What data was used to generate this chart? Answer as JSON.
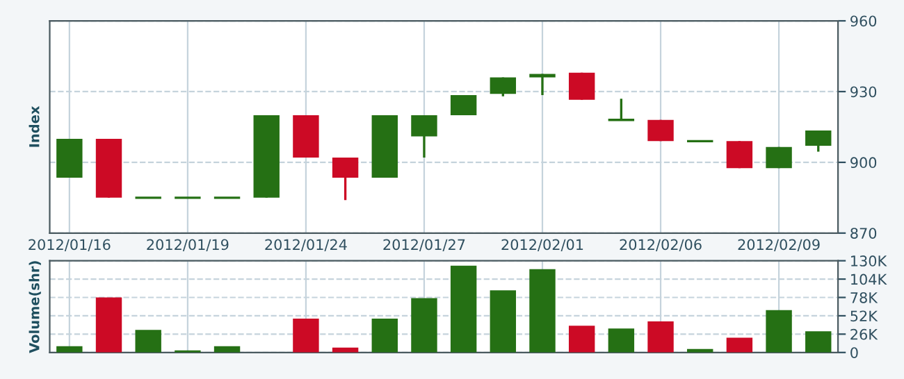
{
  "chart_data": [
    {
      "type": "candlestick",
      "ylabel": "Index",
      "categories": [
        "2012/01/16",
        null,
        null,
        "2012/01/19",
        null,
        null,
        "2012/01/24",
        null,
        null,
        "2012/01/27",
        null,
        null,
        "2012/02/01",
        null,
        null,
        "2012/02/06",
        null,
        null,
        "2012/02/09",
        null
      ],
      "ohlc": [
        [
          893.5,
          910,
          893.5,
          910
        ],
        [
          910,
          910,
          885,
          885
        ],
        [
          885,
          885,
          885,
          885
        ],
        [
          885,
          885,
          885,
          885
        ],
        [
          885,
          885,
          885,
          885
        ],
        [
          885,
          920,
          885,
          920
        ],
        [
          920,
          920,
          902,
          902
        ],
        [
          902,
          902,
          884,
          893.5
        ],
        [
          893.5,
          920,
          893.5,
          920
        ],
        [
          911,
          920,
          902,
          920
        ],
        [
          920,
          928.5,
          920,
          928.5
        ],
        [
          929,
          936,
          928,
          936
        ],
        [
          936,
          937.5,
          928.5,
          937.5
        ],
        [
          938,
          938,
          926.5,
          926.5
        ],
        [
          918,
          927,
          918,
          918
        ],
        [
          918,
          918,
          909,
          909
        ],
        [
          909,
          909,
          909,
          909
        ],
        [
          909,
          909,
          897.5,
          897.5
        ],
        [
          897.5,
          906.5,
          897.5,
          906.5
        ],
        [
          907,
          913.5,
          904.5,
          913.5
        ]
      ],
      "colors": [
        "#257014",
        "#cc0a25",
        "#257014",
        "#257014",
        "#257014",
        "#257014",
        "#cc0a25",
        "#cc0a25",
        "#257014",
        "#257014",
        "#257014",
        "#257014",
        "#257014",
        "#cc0a25",
        "#257014",
        "#cc0a25",
        "#257014",
        "#cc0a25",
        "#257014",
        "#257014"
      ],
      "ylim": [
        870,
        960
      ],
      "yticks": [
        870,
        900,
        930,
        960
      ],
      "grid": true
    },
    {
      "type": "bar",
      "ylabel": "Volume(shr)",
      "categories": [
        "2012/01/16",
        null,
        null,
        "2012/01/19",
        null,
        null,
        "2012/01/24",
        null,
        null,
        "2012/01/27",
        null,
        null,
        "2012/02/01",
        null,
        null,
        "2012/02/06",
        null,
        null,
        "2012/02/09",
        null
      ],
      "values": [
        9000,
        78000,
        32000,
        3000,
        9000,
        null,
        48000,
        7000,
        48000,
        77000,
        123000,
        88000,
        118000,
        38000,
        34000,
        44000,
        5000,
        21000,
        60000,
        30000
      ],
      "colors": [
        "#257014",
        "#cc0a25",
        "#257014",
        "#257014",
        "#257014",
        "#c8cccc",
        "#cc0a25",
        "#cc0a25",
        "#257014",
        "#257014",
        "#257014",
        "#257014",
        "#257014",
        "#cc0a25",
        "#257014",
        "#cc0a25",
        "#257014",
        "#cc0a25",
        "#257014",
        "#257014"
      ],
      "ylim": [
        0,
        130000
      ],
      "yticks": [
        {
          "value": 0,
          "label": "0"
        },
        {
          "value": 26000,
          "label": "26K"
        },
        {
          "value": 52000,
          "label": "52K"
        },
        {
          "value": 78000,
          "label": "78K"
        },
        {
          "value": 104000,
          "label": "104K"
        },
        {
          "value": 130000,
          "label": "130K"
        }
      ],
      "tick_labels": "y",
      "grid": true
    }
  ]
}
